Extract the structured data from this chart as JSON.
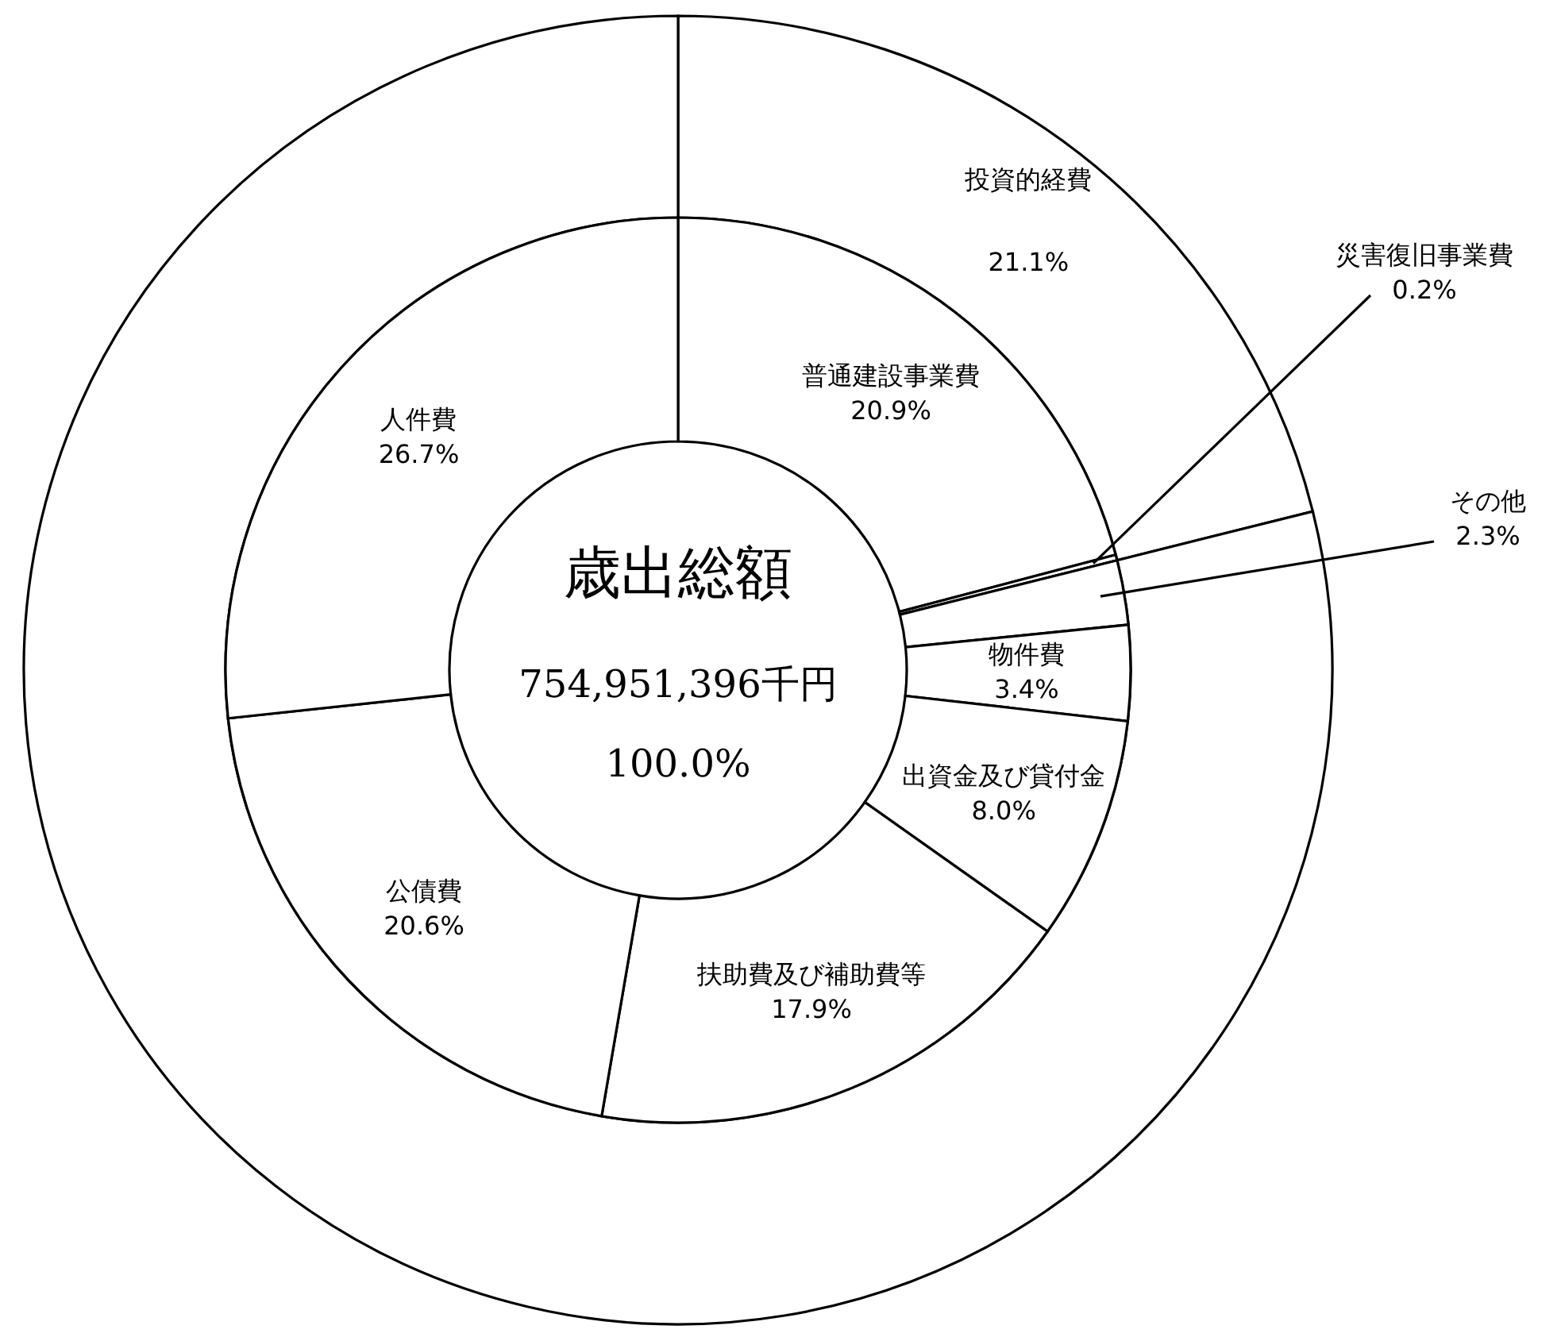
{
  "chart_data": [
    {
      "type": "donut",
      "categories": [
        "投資的経費",
        null
      ],
      "values": [
        21.1,
        78.9
      ],
      "colors": [
        "#ffffff",
        "#ffffff"
      ],
      "value_labels": [
        "21.1%",
        null
      ]
    },
    {
      "type": "donut",
      "title": "歳出総額",
      "annotations": [
        "754,951,396千円",
        "100.0%"
      ],
      "categories": [
        "普通建設事業費",
        "災害復旧事業費",
        "その他",
        "物件費",
        "出資金及び貸付金",
        "扶助費及び補助費等",
        "公債費",
        "人件費"
      ],
      "values": [
        20.9,
        0.2,
        2.3,
        3.4,
        8.0,
        17.9,
        20.6,
        26.7
      ],
      "colors": [
        "#ffffff",
        "#ffffff",
        "#ffffff",
        "#ffffff",
        "#ffffff",
        "#ffffff",
        "#ffffff",
        "#ffffff"
      ],
      "value_labels": [
        "20.9%",
        "0.2%",
        "2.3%",
        "3.4%",
        "8.0%",
        "17.9%",
        "20.6%",
        "26.7%"
      ]
    }
  ]
}
